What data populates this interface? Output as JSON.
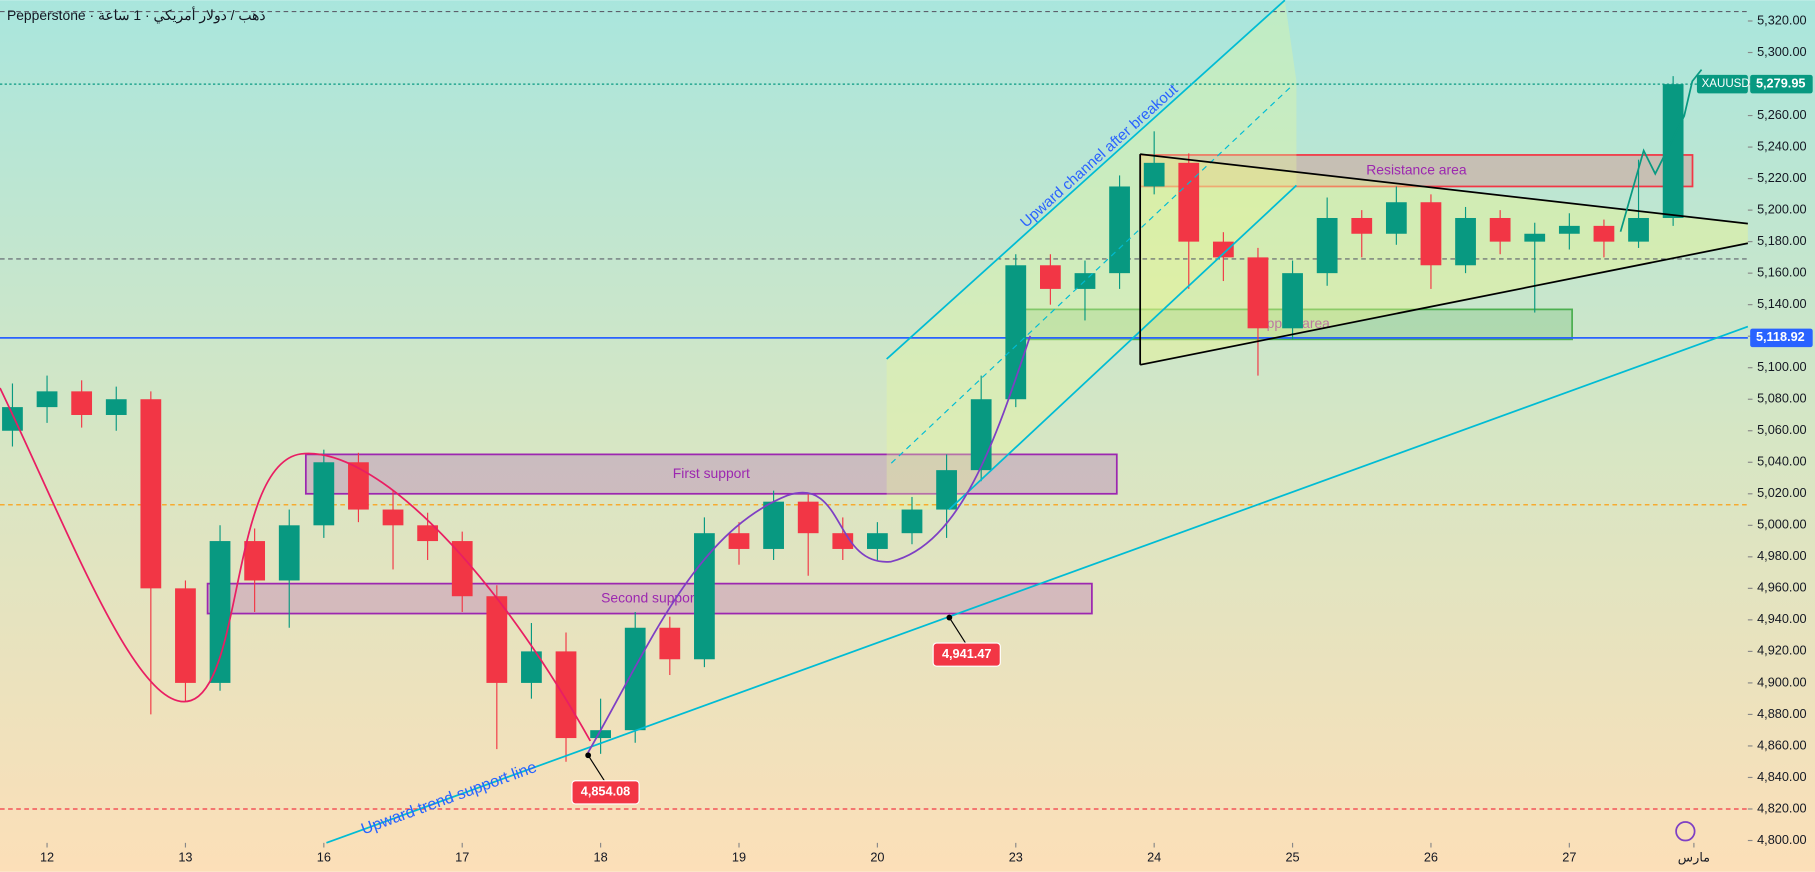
{
  "header": {
    "title": "Pepperstone · ذهب / دولار أمريكي · 1 ساعة"
  },
  "chart_data": {
    "type": "candlestick",
    "xlim": [
      -0.34,
      12.29
    ],
    "ylim": [
      4798.5,
      5333.2
    ],
    "xticks": [
      {
        "value": 0,
        "label": "12"
      },
      {
        "value": 1,
        "label": "13"
      },
      {
        "value": 2,
        "label": "16"
      },
      {
        "value": 3,
        "label": "17"
      },
      {
        "value": 4,
        "label": "18"
      },
      {
        "value": 5,
        "label": "19"
      },
      {
        "value": 6,
        "label": "20"
      },
      {
        "value": 7,
        "label": "23"
      },
      {
        "value": 8,
        "label": "24"
      },
      {
        "value": 9,
        "label": "25"
      },
      {
        "value": 10,
        "label": "26"
      },
      {
        "value": 11,
        "label": "27"
      },
      {
        "value": 11.9,
        "label": "مارس"
      }
    ],
    "yticks": [
      {
        "value": 5320,
        "label": "5,320.00"
      },
      {
        "value": 5300,
        "label": "5,300.00"
      },
      {
        "value": 5280,
        "label": "5,280.00"
      },
      {
        "value": 5260,
        "label": "5,260.00"
      },
      {
        "value": 5240,
        "label": "5,240.00"
      },
      {
        "value": 5220,
        "label": "5,220.00"
      },
      {
        "value": 5200,
        "label": "5,200.00"
      },
      {
        "value": 5180,
        "label": "5,180.00"
      },
      {
        "value": 5160,
        "label": "5,160.00"
      },
      {
        "value": 5140,
        "label": "5,140.00"
      },
      {
        "value": 5120,
        "label": "5,120.00"
      },
      {
        "value": 5100,
        "label": "5,100.00"
      },
      {
        "value": 5080,
        "label": "5,080.00"
      },
      {
        "value": 5060,
        "label": "5,060.00"
      },
      {
        "value": 5040,
        "label": "5,040.00"
      },
      {
        "value": 5020,
        "label": "5,020.00"
      },
      {
        "value": 5000,
        "label": "5,000.00"
      },
      {
        "value": 4980,
        "label": "4,980.00"
      },
      {
        "value": 4960,
        "label": "4,960.00"
      },
      {
        "value": 4940,
        "label": "4,940.00"
      },
      {
        "value": 4920,
        "label": "4,920.00"
      },
      {
        "value": 4900,
        "label": "4,900.00"
      },
      {
        "value": 4880,
        "label": "4,880.00"
      },
      {
        "value": 4860,
        "label": "4,860.00"
      },
      {
        "value": 4840,
        "label": "4,840.00"
      },
      {
        "value": 4820,
        "label": "4,820.00"
      },
      {
        "value": 4800,
        "label": "4,800.00"
      }
    ],
    "up_color": "#089981",
    "down_color": "#f23645",
    "x": [
      -0.25,
      0,
      0.25,
      0.5,
      0.75,
      1,
      1.25,
      1.5,
      1.75,
      2,
      2.25,
      2.5,
      2.75,
      3,
      3.25,
      3.5,
      3.75,
      4,
      4.25,
      4.5,
      4.75,
      5,
      5.25,
      5.5,
      5.75,
      6,
      6.25,
      6.5,
      6.75,
      7,
      7.25,
      7.5,
      7.75,
      8,
      8.25,
      8.5,
      8.75,
      9,
      9.25,
      9.5,
      9.75,
      10,
      10.25,
      10.5,
      10.75,
      11,
      11.25,
      11.5,
      11.75
    ],
    "candles": [
      [
        5060,
        5090,
        5050,
        5075
      ],
      [
        5075,
        5095,
        5065,
        5085
      ],
      [
        5085,
        5092,
        5062,
        5070
      ],
      [
        5070,
        5088,
        5060,
        5080
      ],
      [
        5080,
        5085,
        4880,
        4960
      ],
      [
        4960,
        4965,
        4888,
        4900
      ],
      [
        4900,
        5000,
        4895,
        4990
      ],
      [
        4990,
        4998,
        4945,
        4965
      ],
      [
        4965,
        5010,
        4935,
        5000
      ],
      [
        5000,
        5048,
        4992,
        5040
      ],
      [
        5040,
        5046,
        5002,
        5010
      ],
      [
        5010,
        5022,
        4972,
        5000
      ],
      [
        5000,
        5008,
        4978,
        4990
      ],
      [
        4990,
        4996,
        4945,
        4955
      ],
      [
        4955,
        4962,
        4858,
        4900
      ],
      [
        4900,
        4938,
        4890,
        4920
      ],
      [
        4920,
        4932,
        4850,
        4865
      ],
      [
        4865,
        4890,
        4855,
        4870
      ],
      [
        4870,
        4945,
        4862,
        4935
      ],
      [
        4935,
        4942,
        4905,
        4915
      ],
      [
        4915,
        5005,
        4910,
        4995
      ],
      [
        4995,
        5002,
        4975,
        4985
      ],
      [
        4985,
        5022,
        4978,
        5015
      ],
      [
        5015,
        5020,
        4968,
        4995
      ],
      [
        4995,
        5005,
        4978,
        4985
      ],
      [
        4985,
        5002,
        4978,
        4995
      ],
      [
        4995,
        5018,
        4988,
        5010
      ],
      [
        5010,
        5045,
        4992,
        5035
      ],
      [
        5035,
        5095,
        5028,
        5080
      ],
      [
        5080,
        5172,
        5075,
        5165
      ],
      [
        5165,
        5172,
        5140,
        5150
      ],
      [
        5150,
        5168,
        5130,
        5160
      ],
      [
        5160,
        5222,
        5150,
        5215
      ],
      [
        5215,
        5250,
        5210,
        5230
      ],
      [
        5230,
        5236,
        5150,
        5180
      ],
      [
        5180,
        5186,
        5155,
        5170
      ],
      [
        5170,
        5176,
        5095,
        5125
      ],
      [
        5125,
        5168,
        5118,
        5160
      ],
      [
        5160,
        5208,
        5152,
        5195
      ],
      [
        5195,
        5200,
        5170,
        5185
      ],
      [
        5185,
        5215,
        5178,
        5205
      ],
      [
        5205,
        5210,
        5150,
        5165
      ],
      [
        5165,
        5202,
        5160,
        5195
      ],
      [
        5195,
        5200,
        5172,
        5180
      ],
      [
        5180,
        5192,
        5135,
        5185
      ],
      [
        5185,
        5198,
        5175,
        5190
      ],
      [
        5190,
        5194,
        5170,
        5180
      ],
      [
        5180,
        5232,
        5176,
        5195
      ],
      [
        5195,
        5285,
        5190,
        5279.95
      ]
    ],
    "zones": [
      {
        "label": "Resistance area",
        "top": 5235,
        "bottom": 5215,
        "x": [
          7.9,
          11.89
        ],
        "color": "#f23645"
      },
      {
        "label": "Support area",
        "top": 5137,
        "bottom": 5118,
        "x": [
          6.94,
          11.02
        ],
        "color": "#4caf50"
      },
      {
        "label": "First support",
        "top": 5045,
        "bottom": 5020,
        "x": [
          1.87,
          7.73
        ],
        "color": "#9c27b0"
      },
      {
        "label": "Second support",
        "top": 4963,
        "bottom": 4944,
        "x": [
          1.16,
          7.55
        ],
        "color": "#9c27b0"
      }
    ],
    "levels": [
      {
        "value": 5326,
        "color": "#5d606b"
      },
      {
        "value": 5169,
        "color": "#5d606b"
      },
      {
        "value": 5013,
        "color": "#ff9800"
      },
      {
        "value": 4820,
        "color": "#f23645"
      }
    ],
    "price_labels": [
      {
        "symbol": "XAUUSD",
        "value": 5279.95,
        "label": "5,279.95",
        "color": "#089981"
      },
      {
        "value": 5118.92,
        "label": "5,118.92",
        "color": "#2962ff"
      }
    ],
    "callouts": [
      {
        "x": 3.91,
        "value": 4854.08,
        "label": "4,854.08"
      },
      {
        "x": 6.52,
        "value": 4941.47,
        "label": "4,941.47"
      }
    ],
    "annotations": [
      "Upward channel after breakout",
      "Upward trend support line"
    ]
  }
}
